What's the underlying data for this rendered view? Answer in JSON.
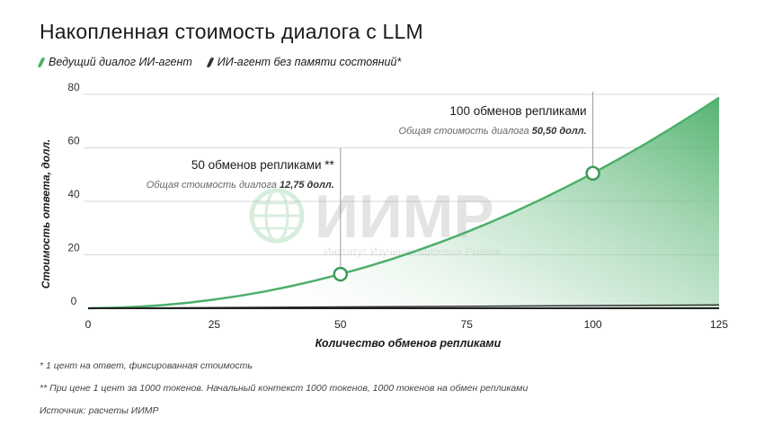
{
  "title": "Накопленная стоимость диалога с LLM",
  "legend": [
    {
      "label": "Ведущий диалог ИИ-агент",
      "color": "#4caf6a"
    },
    {
      "label": "ИИ-агент без памяти состояний*",
      "color": "#333333"
    }
  ],
  "watermark": {
    "main": "ИИМР",
    "sub": "Институт Изучения Мировых Рынков"
  },
  "footnotes": {
    "note1": "* 1 цент на ответ, фиксированная стоимость",
    "note2": "** При цене 1 цент за 1000 токенов. Начальный контекст 1000 токенов, 1000 токенов на обмен репликами",
    "source": "Источник: расчеты ИИМР"
  },
  "colors": {
    "accent": "#4caf6a",
    "accent_dark": "#3d9a58",
    "baseline": "#222222",
    "grid": "#d9d9d9"
  },
  "chart_data": {
    "type": "area",
    "title": "Накопленная стоимость диалога с LLM",
    "xlabel": "Количество обменов репликами",
    "ylabel": "Стоимость ответа, долл.",
    "xlim": [
      0,
      125
    ],
    "ylim": [
      0,
      80
    ],
    "xticks": [
      0,
      25,
      50,
      75,
      100,
      125
    ],
    "yticks": [
      0,
      20,
      40,
      60,
      80
    ],
    "grid": true,
    "series": [
      {
        "name": "Ведущий диалог ИИ-агент",
        "color": "#4caf6a",
        "x": [
          0,
          5,
          10,
          15,
          20,
          25,
          30,
          35,
          40,
          45,
          50,
          55,
          60,
          65,
          70,
          75,
          80,
          85,
          90,
          95,
          100,
          105,
          110,
          115,
          120,
          125
        ],
        "y": [
          0,
          0.2,
          0.6,
          1.2,
          2.1,
          3.25,
          4.65,
          6.3,
          8.2,
          10.35,
          12.75,
          15.4,
          18.3,
          21.45,
          24.85,
          28.5,
          32.4,
          36.55,
          40.95,
          45.6,
          50.5,
          55.65,
          61.05,
          66.7,
          72.6,
          78.75
        ]
      },
      {
        "name": "ИИ-агент без памяти состояний*",
        "color": "#333333",
        "x": [
          0,
          125
        ],
        "y": [
          0,
          1.25
        ]
      }
    ],
    "annotations": [
      {
        "x": 50,
        "y": 12.75,
        "line_top_y": 60,
        "label": "50 обменов репликами **",
        "sub_prefix": "Общая стоимость диалога ",
        "sub_value": "12,75 долл."
      },
      {
        "x": 100,
        "y": 50.5,
        "line_top_y": 81,
        "label": "100 обменов репликами",
        "sub_prefix": "Общая стоимость диалога ",
        "sub_value": "50,50 долл."
      }
    ]
  }
}
